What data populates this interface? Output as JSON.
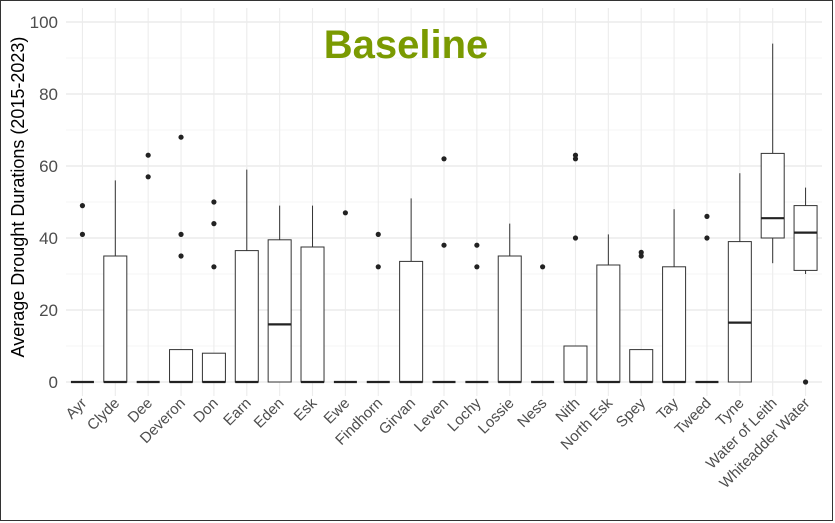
{
  "chart_data": {
    "type": "box",
    "title": "Baseline",
    "title_color": "#7a9a01",
    "ylabel": "Average Drought Durations (2015-2023)",
    "xlabel": "",
    "ylim": [
      0,
      100
    ],
    "yticks": [
      0,
      20,
      40,
      60,
      80,
      100
    ],
    "grid": true,
    "categories": [
      "Ayr",
      "Clyde",
      "Dee",
      "Deveron",
      "Don",
      "Earn",
      "Eden",
      "Esk",
      "Ewe",
      "Findhorn",
      "Girvan",
      "Leven",
      "Lochy",
      "Lossie",
      "Ness",
      "Nith",
      "North Esk",
      "Spey",
      "Tay",
      "Tweed",
      "Tyne",
      "Water of Leith",
      "Whiteadder Water"
    ],
    "boxes": [
      {
        "q1": 0,
        "median": 0,
        "q3": 0,
        "whisker_low": 0,
        "whisker_high": 0,
        "outliers": [
          41,
          49
        ]
      },
      {
        "q1": 0,
        "median": 0,
        "q3": 35,
        "whisker_low": 0,
        "whisker_high": 56,
        "outliers": []
      },
      {
        "q1": 0,
        "median": 0,
        "q3": 0,
        "whisker_low": 0,
        "whisker_high": 0,
        "outliers": [
          57,
          63
        ]
      },
      {
        "q1": 0,
        "median": 0,
        "q3": 9,
        "whisker_low": 0,
        "whisker_high": 9,
        "outliers": [
          35,
          41,
          68
        ]
      },
      {
        "q1": 0,
        "median": 0,
        "q3": 8,
        "whisker_low": 0,
        "whisker_high": 8,
        "outliers": [
          32,
          44,
          50
        ]
      },
      {
        "q1": 0,
        "median": 0,
        "q3": 36.5,
        "whisker_low": 0,
        "whisker_high": 59,
        "outliers": []
      },
      {
        "q1": 0,
        "median": 16,
        "q3": 39.5,
        "whisker_low": 0,
        "whisker_high": 49,
        "outliers": []
      },
      {
        "q1": 0,
        "median": 0,
        "q3": 37.5,
        "whisker_low": 0,
        "whisker_high": 49,
        "outliers": []
      },
      {
        "q1": 0,
        "median": 0,
        "q3": 0,
        "whisker_low": 0,
        "whisker_high": 0,
        "outliers": [
          47
        ]
      },
      {
        "q1": 0,
        "median": 0,
        "q3": 0,
        "whisker_low": 0,
        "whisker_high": 0,
        "outliers": [
          32,
          41
        ]
      },
      {
        "q1": 0,
        "median": 0,
        "q3": 33.5,
        "whisker_low": 0,
        "whisker_high": 51,
        "outliers": []
      },
      {
        "q1": 0,
        "median": 0,
        "q3": 0,
        "whisker_low": 0,
        "whisker_high": 0,
        "outliers": [
          38,
          62
        ]
      },
      {
        "q1": 0,
        "median": 0,
        "q3": 0,
        "whisker_low": 0,
        "whisker_high": 0,
        "outliers": [
          32,
          38
        ]
      },
      {
        "q1": 0,
        "median": 0,
        "q3": 35,
        "whisker_low": 0,
        "whisker_high": 44,
        "outliers": []
      },
      {
        "q1": 0,
        "median": 0,
        "q3": 0,
        "whisker_low": 0,
        "whisker_high": 0,
        "outliers": [
          32
        ]
      },
      {
        "q1": 0,
        "median": 0,
        "q3": 10,
        "whisker_low": 0,
        "whisker_high": 10,
        "outliers": [
          40,
          62,
          63
        ]
      },
      {
        "q1": 0,
        "median": 0,
        "q3": 32.5,
        "whisker_low": 0,
        "whisker_high": 41,
        "outliers": []
      },
      {
        "q1": 0,
        "median": 0,
        "q3": 9,
        "whisker_low": 0,
        "whisker_high": 9,
        "outliers": [
          35,
          36
        ]
      },
      {
        "q1": 0,
        "median": 0,
        "q3": 32,
        "whisker_low": 0,
        "whisker_high": 48,
        "outliers": []
      },
      {
        "q1": 0,
        "median": 0,
        "q3": 0,
        "whisker_low": 0,
        "whisker_high": 0,
        "outliers": [
          40,
          46
        ]
      },
      {
        "q1": 0,
        "median": 16.5,
        "q3": 39,
        "whisker_low": 0,
        "whisker_high": 58,
        "outliers": []
      },
      {
        "q1": 40,
        "median": 45.5,
        "q3": 63.5,
        "whisker_low": 33,
        "whisker_high": 94,
        "outliers": []
      },
      {
        "q1": 31,
        "median": 41.5,
        "q3": 49,
        "whisker_low": 30,
        "whisker_high": 54,
        "outliers": [
          0
        ]
      }
    ]
  }
}
